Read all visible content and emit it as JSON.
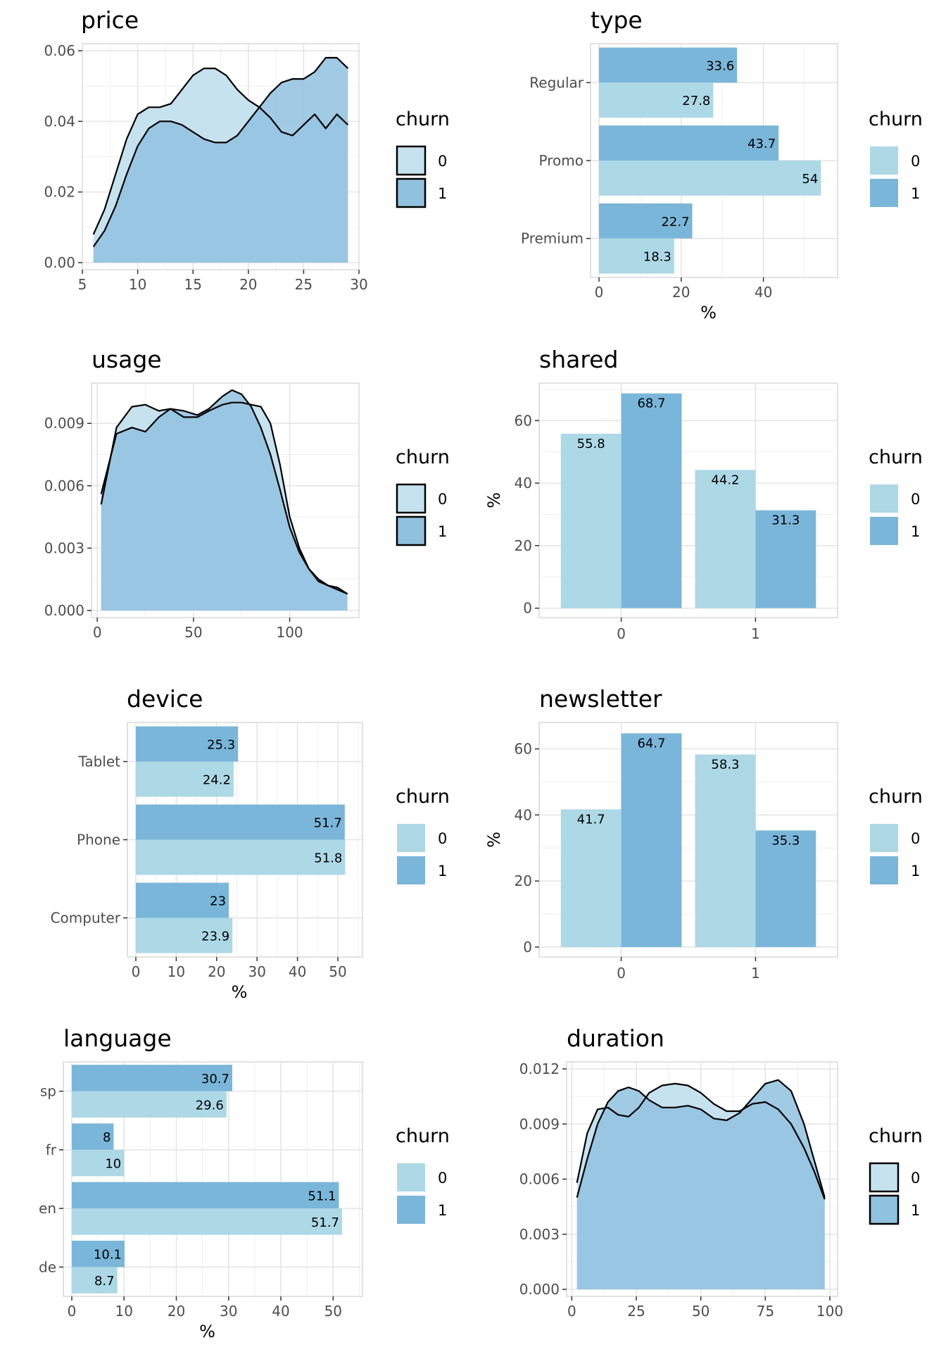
{
  "colors": {
    "churn_0": "#add8e6",
    "churn_1": "#7ab6d9",
    "churn_0_density": "#c6e2ee",
    "churn_1_density": "#90c1df",
    "grid": "#e3e3e3",
    "panel_border": "#d9d9d9",
    "line": "#000000"
  },
  "chart_data": [
    {
      "id": "price",
      "type": "area",
      "title": "price",
      "xlabel": "",
      "ylabel": "",
      "xlim": [
        5,
        30
      ],
      "ylim": [
        0,
        0.06
      ],
      "xticks": [
        5,
        10,
        15,
        20,
        25,
        30
      ],
      "yticks": [
        0.0,
        0.02,
        0.04,
        0.06
      ],
      "ytick_labels": [
        "0.00",
        "0.02",
        "0.04",
        "0.06"
      ],
      "legend": {
        "title": "churn",
        "labels": [
          "0",
          "1"
        ],
        "position": "right"
      },
      "series": [
        {
          "name": "0",
          "x": [
            6,
            7,
            8,
            9,
            10,
            11,
            12,
            13,
            14,
            15,
            16,
            17,
            18,
            19,
            20,
            21,
            22,
            23,
            24,
            25,
            26,
            27,
            28,
            29
          ],
          "values": [
            0.008,
            0.015,
            0.025,
            0.035,
            0.042,
            0.044,
            0.044,
            0.045,
            0.049,
            0.053,
            0.055,
            0.055,
            0.053,
            0.049,
            0.046,
            0.044,
            0.041,
            0.037,
            0.036,
            0.039,
            0.042,
            0.038,
            0.042,
            0.039
          ]
        },
        {
          "name": "1",
          "x": [
            6,
            7,
            8,
            9,
            10,
            11,
            12,
            13,
            14,
            15,
            16,
            17,
            18,
            19,
            20,
            21,
            22,
            23,
            24,
            25,
            26,
            27,
            28,
            29
          ],
          "values": [
            0.0045,
            0.009,
            0.016,
            0.025,
            0.033,
            0.038,
            0.04,
            0.04,
            0.039,
            0.037,
            0.035,
            0.034,
            0.034,
            0.036,
            0.04,
            0.044,
            0.048,
            0.051,
            0.052,
            0.052,
            0.054,
            0.058,
            0.058,
            0.055
          ]
        }
      ]
    },
    {
      "id": "type",
      "type": "bar",
      "orientation": "horizontal",
      "title": "type",
      "xlabel": "%",
      "ylabel": "",
      "xlim": [
        0,
        56
      ],
      "xticks": [
        0,
        20,
        40
      ],
      "categories": [
        "Premium",
        "Promo",
        "Regular"
      ],
      "legend": {
        "title": "churn",
        "labels": [
          "0",
          "1"
        ],
        "position": "right"
      },
      "series": [
        {
          "name": "0",
          "values": [
            18.3,
            54,
            27.8
          ]
        },
        {
          "name": "1",
          "values": [
            22.7,
            43.7,
            33.6
          ]
        }
      ]
    },
    {
      "id": "usage",
      "type": "area",
      "title": "usage",
      "xlabel": "",
      "ylabel": "",
      "xlim": [
        -3,
        136
      ],
      "ylim": [
        0,
        0.0106
      ],
      "xticks": [
        0,
        50,
        100
      ],
      "yticks": [
        0,
        0.003,
        0.006,
        0.009
      ],
      "ytick_labels": [
        "0.000",
        "0.003",
        "0.006",
        "0.009"
      ],
      "legend": {
        "title": "churn",
        "labels": [
          "0",
          "1"
        ],
        "position": "right"
      },
      "series": [
        {
          "name": "0",
          "x": [
            2,
            10,
            18,
            25,
            32,
            38,
            45,
            52,
            58,
            65,
            70,
            75,
            80,
            85,
            90,
            95,
            100,
            105,
            110,
            115,
            120,
            125,
            130
          ],
          "values": [
            0.0051,
            0.0088,
            0.0098,
            0.0099,
            0.0096,
            0.0097,
            0.0093,
            0.0093,
            0.0096,
            0.0099,
            0.01,
            0.01,
            0.0099,
            0.0098,
            0.009,
            0.007,
            0.0045,
            0.003,
            0.002,
            0.0014,
            0.0012,
            0.0011,
            0.0008
          ]
        },
        {
          "name": "1",
          "x": [
            2,
            10,
            18,
            25,
            32,
            38,
            45,
            52,
            58,
            65,
            70,
            75,
            80,
            85,
            90,
            95,
            100,
            105,
            110,
            115,
            120,
            125,
            130
          ],
          "values": [
            0.0056,
            0.0085,
            0.0088,
            0.0086,
            0.0093,
            0.0097,
            0.0096,
            0.0094,
            0.0097,
            0.0103,
            0.0106,
            0.0104,
            0.0098,
            0.0088,
            0.0075,
            0.0058,
            0.004,
            0.0028,
            0.002,
            0.0015,
            0.0012,
            0.001,
            0.0008
          ]
        }
      ]
    },
    {
      "id": "shared",
      "type": "bar",
      "orientation": "vertical",
      "title": "shared",
      "xlabel": "",
      "ylabel": "%",
      "ylim": [
        -3,
        72
      ],
      "yticks": [
        0,
        20,
        40,
        60
      ],
      "categories": [
        "0",
        "1"
      ],
      "legend": {
        "title": "churn",
        "labels": [
          "0",
          "1"
        ],
        "position": "right"
      },
      "series": [
        {
          "name": "0",
          "values": [
            55.8,
            44.2
          ]
        },
        {
          "name": "1",
          "values": [
            68.7,
            31.3
          ]
        }
      ]
    },
    {
      "id": "device",
      "type": "bar",
      "orientation": "horizontal",
      "title": "device",
      "xlabel": "%",
      "ylabel": "",
      "xlim": [
        0,
        54
      ],
      "xticks": [
        0,
        10,
        20,
        30,
        40,
        50
      ],
      "categories": [
        "Computer",
        "Phone",
        "Tablet"
      ],
      "legend": {
        "title": "churn",
        "labels": [
          "0",
          "1"
        ],
        "position": "right"
      },
      "series": [
        {
          "name": "0",
          "values": [
            23.9,
            51.8,
            24.2
          ]
        },
        {
          "name": "1",
          "values": [
            23,
            51.7,
            25.3
          ]
        }
      ]
    },
    {
      "id": "newsletter",
      "type": "bar",
      "orientation": "vertical",
      "title": "newsletter",
      "xlabel": "",
      "ylabel": "%",
      "ylim": [
        -3,
        68
      ],
      "yticks": [
        0,
        20,
        40,
        60
      ],
      "categories": [
        "0",
        "1"
      ],
      "legend": {
        "title": "churn",
        "labels": [
          "0",
          "1"
        ],
        "position": "right"
      },
      "series": [
        {
          "name": "0",
          "values": [
            41.7,
            58.3
          ]
        },
        {
          "name": "1",
          "values": [
            64.7,
            35.3
          ]
        }
      ]
    },
    {
      "id": "language",
      "type": "bar",
      "orientation": "horizontal",
      "title": "language",
      "xlabel": "%",
      "ylabel": "",
      "xlim": [
        0,
        54
      ],
      "xticks": [
        0,
        10,
        20,
        30,
        40,
        50
      ],
      "categories": [
        "de",
        "en",
        "fr",
        "sp"
      ],
      "legend": {
        "title": "churn",
        "labels": [
          "0",
          "1"
        ],
        "position": "right"
      },
      "series": [
        {
          "name": "0",
          "values": [
            8.7,
            51.7,
            10,
            29.6
          ]
        },
        {
          "name": "1",
          "values": [
            10.1,
            51.1,
            8,
            30.7
          ]
        }
      ]
    },
    {
      "id": "duration",
      "type": "area",
      "title": "duration",
      "xlabel": "",
      "ylabel": "",
      "xlim": [
        -2,
        103
      ],
      "ylim": [
        0,
        0.012
      ],
      "xticks": [
        0,
        25,
        50,
        75,
        100
      ],
      "yticks": [
        0,
        0.003,
        0.006,
        0.009,
        0.012
      ],
      "ytick_labels": [
        "0.000",
        "0.003",
        "0.006",
        "0.009",
        "0.012"
      ],
      "legend": {
        "title": "churn",
        "labels": [
          "0",
          "1"
        ],
        "position": "right"
      },
      "series": [
        {
          "name": "0",
          "x": [
            2,
            6,
            10,
            14,
            18,
            22,
            26,
            30,
            35,
            40,
            45,
            50,
            55,
            60,
            65,
            70,
            75,
            80,
            85,
            90,
            94,
            98
          ],
          "values": [
            0.0058,
            0.0085,
            0.0098,
            0.0099,
            0.0095,
            0.0094,
            0.0099,
            0.0107,
            0.0111,
            0.0112,
            0.0111,
            0.0107,
            0.0101,
            0.0097,
            0.0097,
            0.0101,
            0.0102,
            0.0098,
            0.009,
            0.0077,
            0.0064,
            0.0049
          ]
        },
        {
          "name": "1",
          "x": [
            2,
            6,
            10,
            14,
            18,
            22,
            26,
            30,
            35,
            40,
            45,
            50,
            55,
            60,
            65,
            70,
            75,
            80,
            85,
            90,
            94,
            98
          ],
          "values": [
            0.005,
            0.0071,
            0.009,
            0.0102,
            0.0108,
            0.011,
            0.0108,
            0.0103,
            0.0099,
            0.0099,
            0.01,
            0.0098,
            0.0093,
            0.0092,
            0.0096,
            0.0104,
            0.0112,
            0.0114,
            0.0108,
            0.009,
            0.007,
            0.005
          ]
        }
      ]
    }
  ]
}
